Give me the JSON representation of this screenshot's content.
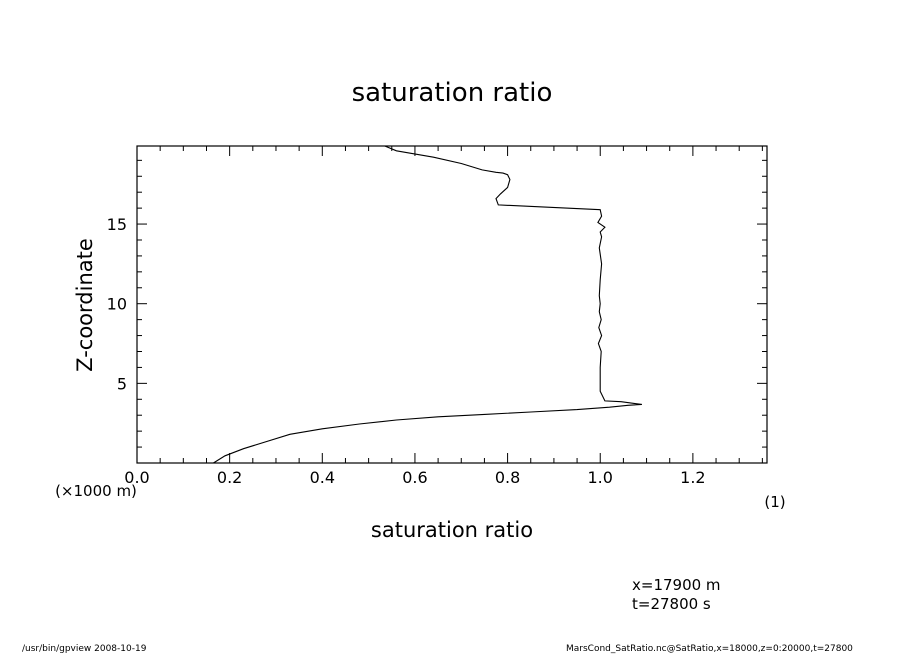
{
  "chart_data": {
    "type": "line",
    "title": "saturation ratio",
    "xlabel": "saturation ratio",
    "ylabel": "Z-coordinate",
    "x_unit_note": "(1)",
    "y_unit_note": "(×1000 m)",
    "xlim": [
      0.0,
      1.36
    ],
    "ylim": [
      0.0,
      19.9
    ],
    "xticks": [
      0.0,
      0.2,
      0.4,
      0.6,
      0.8,
      1.0,
      1.2
    ],
    "xtick_labels": [
      "0.0",
      "0.2",
      "0.4",
      "0.6",
      "0.8",
      "1.0",
      "1.2"
    ],
    "yticks": [
      5,
      10,
      15
    ],
    "ytick_labels": [
      "5",
      "10",
      "15"
    ],
    "grid": false,
    "series": [
      {
        "x": [
          0.165,
          0.19,
          0.23,
          0.28,
          0.33,
          0.4,
          0.48,
          0.56,
          0.65,
          0.75,
          0.85,
          0.95,
          1.02,
          1.06,
          1.09,
          1.045,
          1.01,
          1.0,
          1.0,
          1.002,
          0.996,
          1.003,
          0.997,
          1.002,
          0.998,
          1.0,
          0.998,
          1.0,
          1.003,
          0.998,
          1.003,
          1.0,
          1.01,
          0.995,
          1.003,
          1.0,
          0.78,
          0.775,
          0.785,
          0.8,
          0.805,
          0.8,
          0.79,
          0.775,
          0.745,
          0.7,
          0.64,
          0.56,
          0.535
        ],
        "y": [
          0.0,
          0.45,
          0.9,
          1.35,
          1.8,
          2.15,
          2.45,
          2.7,
          2.9,
          3.05,
          3.2,
          3.35,
          3.5,
          3.62,
          3.68,
          3.85,
          3.9,
          4.5,
          6.0,
          7.0,
          7.5,
          8.0,
          8.5,
          9.0,
          9.5,
          10.0,
          10.5,
          11.5,
          12.5,
          13.5,
          14.2,
          14.5,
          14.8,
          15.1,
          15.5,
          15.9,
          16.2,
          16.6,
          16.9,
          17.3,
          17.8,
          18.1,
          18.2,
          18.25,
          18.4,
          18.8,
          19.2,
          19.6,
          19.9
        ]
      }
    ]
  },
  "footer": {
    "left": "/usr/bin/gpview   2008-10-19",
    "right": "MarsCond_SatRatio.nc@SatRatio,x=18000,z=0:20000,t=27800"
  },
  "annotations": {
    "x_value": "x=17900  m",
    "t_value": "t=27800  s"
  }
}
